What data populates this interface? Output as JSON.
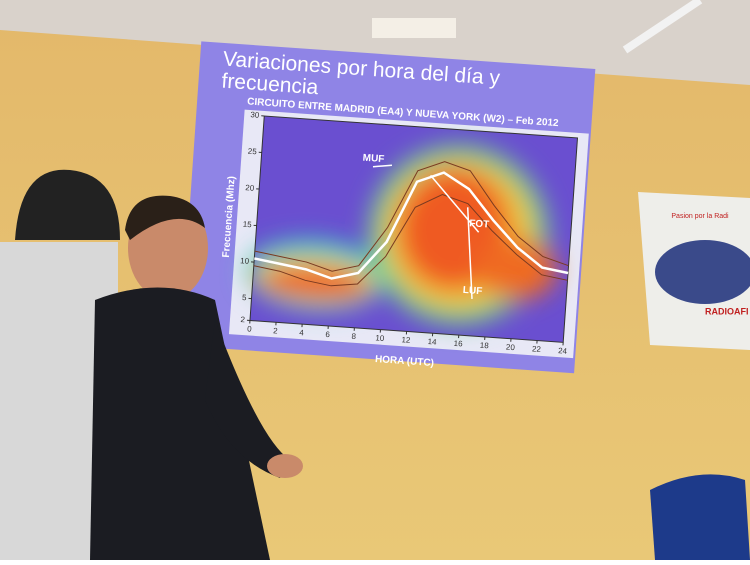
{
  "chart_data": {
    "type": "line",
    "title": [
      "Variaciones por hora del día y",
      "frecuencia"
    ],
    "subtitle": "CIRCUITO ENTRE MADRID (EA4) Y NUEVA YORK (W2) – Feb 2012",
    "xlabel": "HORA (UTC)",
    "ylabel": "Frecuencia (Mhz)",
    "x": [
      0,
      2,
      4,
      6,
      8,
      10,
      12,
      14,
      16,
      18,
      20,
      22,
      24
    ],
    "series": [
      {
        "name": "MUF",
        "color": "#7a3a20",
        "values": [
          11.5,
          11,
          10.5,
          9.5,
          10.5,
          16,
          24,
          25.5,
          24.5,
          20,
          16,
          13.5,
          12.5
        ]
      },
      {
        "name": "FOT",
        "color": "#ffffff",
        "values": [
          10.5,
          10,
          9.5,
          8.5,
          9.5,
          14,
          22.5,
          24,
          22,
          18,
          14.5,
          12,
          11.5
        ]
      },
      {
        "name": "LUF",
        "color": "#7a3a20",
        "values": [
          9.5,
          9,
          8,
          7.5,
          8,
          12,
          19,
          21,
          20,
          16.5,
          13.5,
          11,
          10.5
        ]
      }
    ],
    "xlim": [
      0,
      24
    ],
    "xticks": [
      0,
      2,
      4,
      6,
      8,
      10,
      12,
      14,
      16,
      18,
      20,
      22,
      24
    ],
    "ylim": [
      2,
      30
    ],
    "yticks": [
      2,
      5,
      10,
      15,
      20,
      25,
      30
    ]
  },
  "banner": {
    "line1": "Pasion por la Radi",
    "line2": "RADIOAFI"
  }
}
